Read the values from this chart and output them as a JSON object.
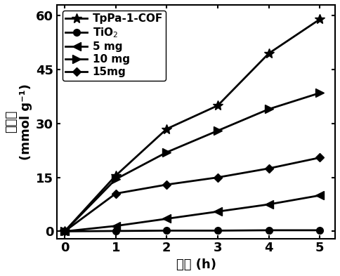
{
  "x": [
    0,
    1,
    2,
    3,
    4,
    5
  ],
  "series": [
    {
      "label": "TpPa-1-COF",
      "y": [
        0,
        15.5,
        28.5,
        35.0,
        49.5,
        59.0
      ],
      "marker": "*",
      "color": "#000000",
      "linewidth": 2.0,
      "markersize": 10
    },
    {
      "label": "TiO$_2$",
      "y": [
        0,
        0.1,
        0.2,
        0.2,
        0.3,
        0.3
      ],
      "marker": "o",
      "color": "#000000",
      "linewidth": 2.0,
      "markersize": 7
    },
    {
      "label": "5 mg",
      "y": [
        0,
        1.5,
        3.5,
        5.5,
        7.5,
        10.0
      ],
      "marker": "<",
      "color": "#000000",
      "linewidth": 2.0,
      "markersize": 8
    },
    {
      "label": "10 mg",
      "y": [
        0,
        14.5,
        22.0,
        28.0,
        34.0,
        38.5
      ],
      "marker": ">",
      "color": "#000000",
      "linewidth": 2.0,
      "markersize": 8
    },
    {
      "label": "15mg",
      "y": [
        0,
        10.5,
        13.0,
        15.0,
        17.5,
        20.5
      ],
      "marker": "D",
      "color": "#000000",
      "linewidth": 2.0,
      "markersize": 6
    }
  ],
  "xlabel": "时间 (h)",
  "ylabel_line1": "产氢量",
  "ylabel_line2": "(mmol g⁻¹)",
  "xlim": [
    -0.15,
    5.3
  ],
  "ylim": [
    -2,
    63
  ],
  "xticks": [
    0,
    1,
    2,
    3,
    4,
    5
  ],
  "yticks": [
    0,
    15,
    30,
    45,
    60
  ],
  "legend_loc": "upper left",
  "font_size": 13,
  "tick_font_size": 13,
  "background_color": "#ffffff"
}
